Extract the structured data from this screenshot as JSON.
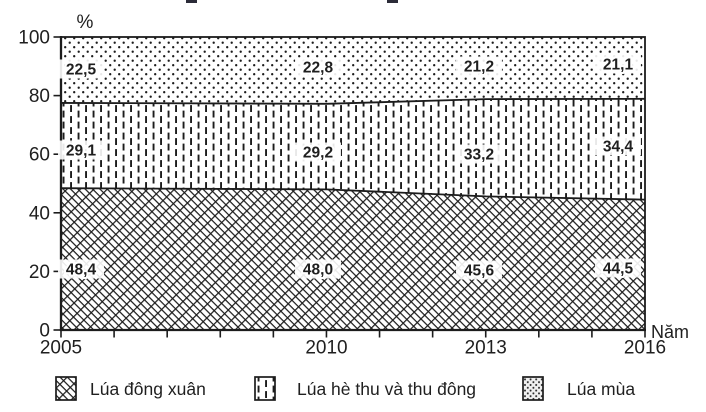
{
  "chart_data": {
    "type": "area",
    "stacked": true,
    "percent_stacked": true,
    "title": "",
    "x": [
      2005,
      2010,
      2013,
      2016
    ],
    "x_axis": {
      "label": "Năm",
      "range": [
        2005,
        2016
      ],
      "labeled_ticks": [
        "2005",
        "2010",
        "2013",
        "2016"
      ],
      "minor_tick_every_years": 1
    },
    "y_axis": {
      "label": "%",
      "range": [
        0,
        100
      ],
      "ticks": [
        "0",
        "20",
        "40",
        "60",
        "80",
        "100"
      ]
    },
    "series": [
      {
        "name": "Lúa đông xuân",
        "pattern": "diagonal-crosshatch",
        "values": [
          48.4,
          48.0,
          45.6,
          44.5
        ],
        "labels": [
          "48,4",
          "48,0",
          "45,6",
          "44,5"
        ]
      },
      {
        "name": "Lúa hè thu và thu đông",
        "pattern": "vertical-dashes",
        "values": [
          29.1,
          29.2,
          33.2,
          34.4
        ],
        "labels": [
          "29,1",
          "29,2",
          "33,2",
          "34,4"
        ]
      },
      {
        "name": "Lúa mùa",
        "pattern": "dots",
        "values": [
          22.5,
          22.8,
          21.2,
          21.1
        ],
        "labels": [
          "22,5",
          "22,8",
          "21,2",
          "21,1"
        ]
      }
    ],
    "legend": {
      "position": "bottom"
    },
    "grid": false,
    "colors": {
      "ink": "#1c1c1c",
      "background": "#ffffff"
    }
  }
}
